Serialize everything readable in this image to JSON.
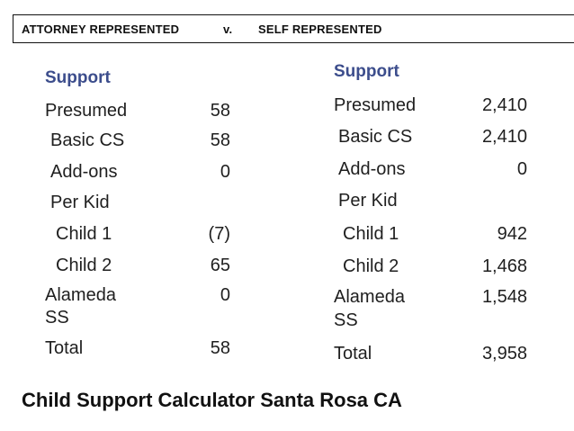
{
  "header": {
    "left": "ATTORNEY REPRESENTED",
    "vs": "v.",
    "right": "SELF REPRESENTED"
  },
  "left": {
    "heading": "Support",
    "rows": [
      {
        "label": "Presumed",
        "value": "58"
      },
      {
        "label": " Basic CS",
        "value": "58"
      },
      {
        "label": " Add-ons",
        "value": "0"
      },
      {
        "label": " Per Kid",
        "value": ""
      },
      {
        "label": "  Child 1",
        "value": "(7)"
      },
      {
        "label": "  Child 2",
        "value": "65"
      },
      {
        "label": "Alameda",
        "value": "0"
      },
      {
        "label": "SS",
        "value": ""
      },
      {
        "label": "Total",
        "value": "58"
      }
    ]
  },
  "right": {
    "heading": "Support",
    "rows": [
      {
        "label": "Presumed",
        "value": "2,410"
      },
      {
        "label": " Basic CS",
        "value": "2,410"
      },
      {
        "label": " Add-ons",
        "value": "0"
      },
      {
        "label": " Per Kid",
        "value": ""
      },
      {
        "label": "  Child 1",
        "value": "942"
      },
      {
        "label": "  Child 2",
        "value": "1,468"
      },
      {
        "label": "Alameda",
        "value": "1,548"
      },
      {
        "label": "SS",
        "value": ""
      },
      {
        "label": "Total",
        "value": "3,958"
      }
    ]
  },
  "footer": {
    "title": "Child Support Calculator Santa Rosa CA"
  }
}
